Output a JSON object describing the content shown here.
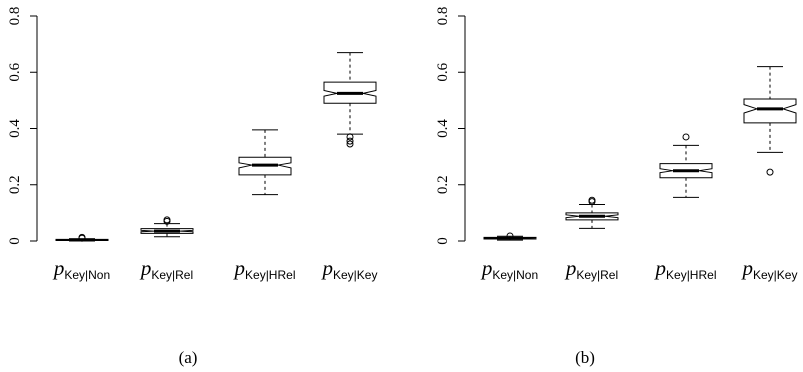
{
  "chart_data": [
    {
      "type": "boxplot",
      "panel_label": "(a)",
      "ylim": [
        0,
        0.8
      ],
      "yticks": [
        "0",
        "0.2",
        "0.4",
        "0.6",
        "0.8"
      ],
      "notched": true,
      "grid": false,
      "categories": [
        {
          "p": "p",
          "sub": "Key|Non"
        },
        {
          "p": "p",
          "sub": "Key|Rel"
        },
        {
          "p": "p",
          "sub": "Key|HRel"
        },
        {
          "p": "p",
          "sub": "Key|Key"
        }
      ],
      "boxes": [
        {
          "whisker_low": 0.0,
          "q1": 0.002,
          "median": 0.004,
          "q3": 0.006,
          "whisker_high": 0.008,
          "notch_low": 0.0035,
          "notch_high": 0.0045,
          "outliers": [
            0.01,
            0.013
          ]
        },
        {
          "whisker_low": 0.015,
          "q1": 0.027,
          "median": 0.035,
          "q3": 0.044,
          "whisker_high": 0.062,
          "notch_low": 0.033,
          "notch_high": 0.038,
          "outliers": [
            0.07,
            0.075
          ]
        },
        {
          "whisker_low": 0.165,
          "q1": 0.235,
          "median": 0.27,
          "q3": 0.298,
          "whisker_high": 0.395,
          "notch_low": 0.26,
          "notch_high": 0.278,
          "outliers": []
        },
        {
          "whisker_low": 0.38,
          "q1": 0.49,
          "median": 0.525,
          "q3": 0.565,
          "whisker_high": 0.67,
          "notch_low": 0.515,
          "notch_high": 0.535,
          "outliers": [
            0.37,
            0.355,
            0.345
          ]
        }
      ]
    },
    {
      "type": "boxplot",
      "panel_label": "(b)",
      "ylim": [
        0,
        0.8
      ],
      "yticks": [
        "0",
        "0.2",
        "0.4",
        "0.6",
        "0.8"
      ],
      "notched": true,
      "grid": false,
      "categories": [
        {
          "p": "p",
          "sub": "Key|Non"
        },
        {
          "p": "p",
          "sub": "Key|Rel"
        },
        {
          "p": "p",
          "sub": "Key|HRel"
        },
        {
          "p": "p",
          "sub": "Key|Key"
        }
      ],
      "boxes": [
        {
          "whisker_low": 0.003,
          "q1": 0.007,
          "median": 0.01,
          "q3": 0.013,
          "whisker_high": 0.017,
          "notch_low": 0.009,
          "notch_high": 0.011,
          "outliers": [
            0.018
          ]
        },
        {
          "whisker_low": 0.045,
          "q1": 0.075,
          "median": 0.088,
          "q3": 0.1,
          "whisker_high": 0.13,
          "notch_low": 0.083,
          "notch_high": 0.093,
          "outliers": [
            0.14,
            0.145
          ]
        },
        {
          "whisker_low": 0.155,
          "q1": 0.225,
          "median": 0.25,
          "q3": 0.275,
          "whisker_high": 0.34,
          "notch_low": 0.243,
          "notch_high": 0.257,
          "outliers": [
            0.37
          ]
        },
        {
          "whisker_low": 0.315,
          "q1": 0.42,
          "median": 0.47,
          "q3": 0.505,
          "whisker_high": 0.62,
          "notch_low": 0.455,
          "notch_high": 0.485,
          "outliers": [
            0.245
          ]
        }
      ]
    }
  ]
}
